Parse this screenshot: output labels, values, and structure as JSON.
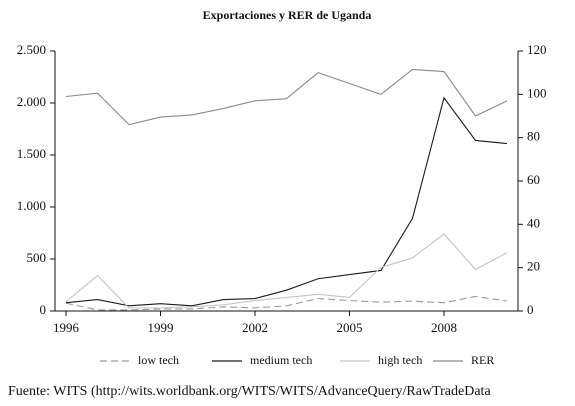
{
  "chart_data": {
    "type": "line",
    "title": "Exportaciones y RER de Uganda",
    "x": [
      1996,
      1997,
      1998,
      1999,
      2000,
      2001,
      2002,
      2003,
      2004,
      2005,
      2006,
      2007,
      2008,
      2009,
      2010
    ],
    "xlim": [
      1995.65,
      2010.35
    ],
    "xticks": [
      1996,
      1999,
      2002,
      2005,
      2008
    ],
    "ylim": [
      0,
      2500
    ],
    "yticks": [
      0,
      500,
      {
        "value": 1000,
        "label": "1.000"
      },
      {
        "value": 1500,
        "label": "1.500"
      },
      {
        "value": 2000,
        "label": "2.000"
      },
      {
        "value": 2500,
        "label": "2.500"
      }
    ],
    "y2lim": [
      0,
      120
    ],
    "y2ticks": [
      0,
      20,
      40,
      60,
      80,
      100,
      120
    ],
    "legend": "bottom",
    "series": [
      {
        "name": "low tech",
        "color": "#9a9a9a",
        "style": "dashed",
        "values": [
          75,
          10,
          10,
          20,
          20,
          40,
          30,
          50,
          120,
          100,
          85,
          95,
          80,
          140,
          95
        ]
      },
      {
        "name": "medium tech",
        "color": "#1a1a1a",
        "style": "solid",
        "values": [
          80,
          110,
          50,
          70,
          50,
          110,
          120,
          200,
          310,
          350,
          390,
          890,
          2050,
          1640,
          1610
        ]
      },
      {
        "name": "high tech",
        "color": "#c4c4c4",
        "style": "solid",
        "values": [
          90,
          340,
          30,
          30,
          40,
          60,
          100,
          130,
          160,
          130,
          420,
          510,
          740,
          400,
          560
        ]
      },
      {
        "name": "RER",
        "color": "#8a8a8a",
        "style": "solid",
        "axis": "y2",
        "values": [
          99,
          100.5,
          86,
          89.5,
          90.5,
          93.5,
          97,
          98,
          110,
          105,
          100,
          111.5,
          110.5,
          90,
          97
        ]
      }
    ],
    "source": "Fuente: WITS (http://wits.worldbank.org/WITS/WITS/AdvanceQuery/RawTradeData"
  }
}
